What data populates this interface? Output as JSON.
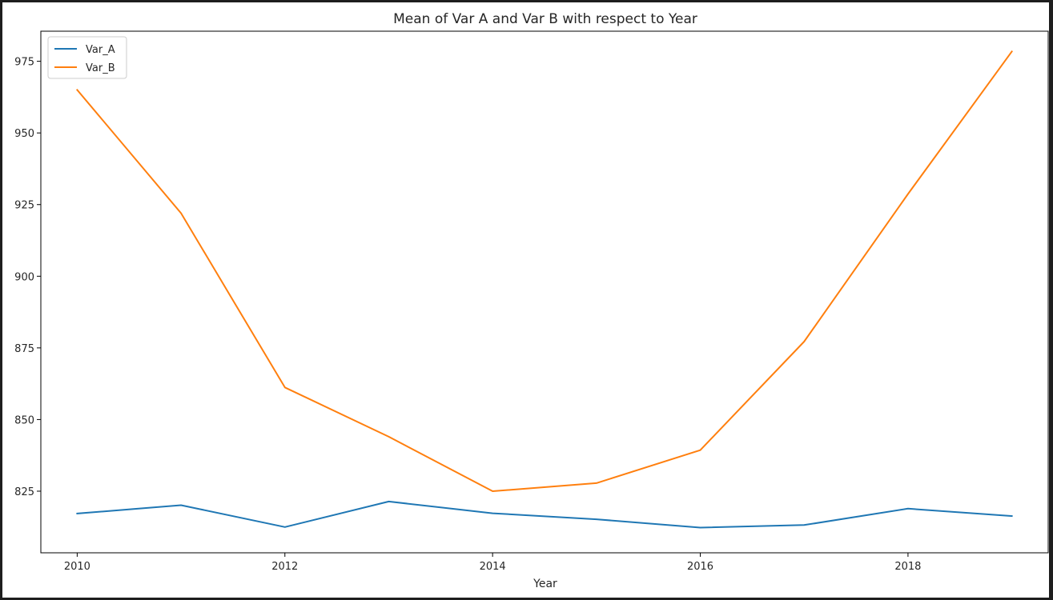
{
  "chart_data": {
    "type": "line",
    "title": "Mean of Var A and Var B with respect to Year",
    "xlabel": "Year",
    "ylabel": "",
    "xlim": [
      2009.65,
      2019.35
    ],
    "ylim": [
      803.5,
      985.5
    ],
    "xticks": [
      2010,
      2012,
      2014,
      2016,
      2018
    ],
    "yticks": [
      825,
      850,
      875,
      900,
      925,
      950,
      975
    ],
    "grid": false,
    "legend_position": "top-left",
    "x": [
      2010,
      2011,
      2012,
      2013,
      2014,
      2015,
      2016,
      2017,
      2018,
      2019
    ],
    "series": [
      {
        "name": "Var_A",
        "color": "#1f77b4",
        "values": [
          817.2,
          820.1,
          812.5,
          821.4,
          817.3,
          815.2,
          812.3,
          813.2,
          818.9,
          816.3
        ]
      },
      {
        "name": "Var_B",
        "color": "#ff7f0e",
        "values": [
          965.0,
          922.0,
          861.2,
          844.0,
          825.0,
          827.8,
          839.3,
          877.2,
          928.7,
          978.4
        ]
      }
    ]
  }
}
